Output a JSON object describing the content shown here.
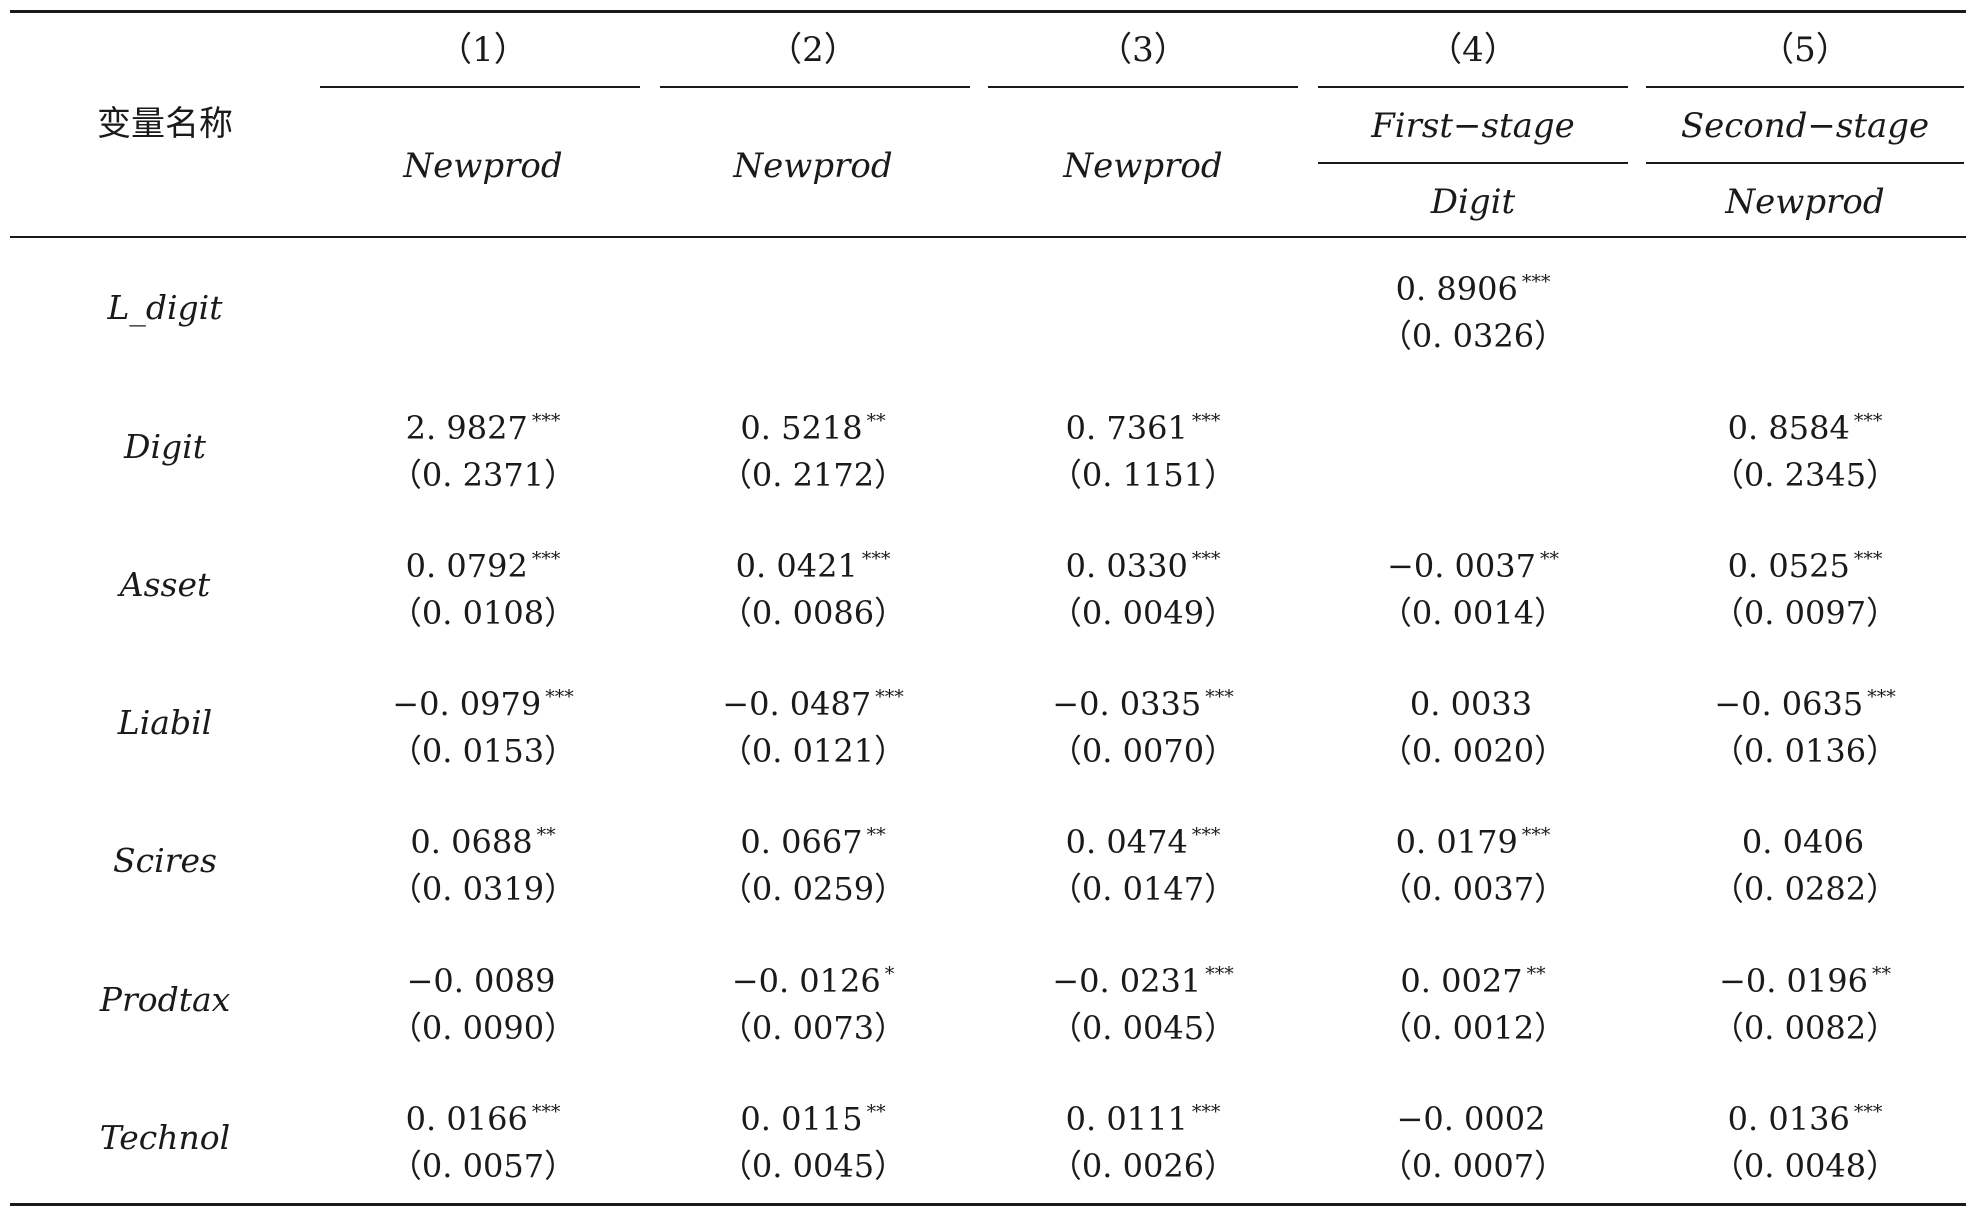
{
  "header": {
    "corner_label": "变量名称",
    "column_numbers": [
      "（1）",
      "（2）",
      "（3）",
      "（4）",
      "（5）"
    ],
    "stage_labels": [
      "First−stage",
      "Second−stage"
    ],
    "dependent_vars": [
      "Newprod",
      "Newprod",
      "Newprod",
      "Digit",
      "Newprod"
    ]
  },
  "rows": [
    {
      "var": "L_digit",
      "cells": [
        {
          "coef": "",
          "stars": "",
          "se": ""
        },
        {
          "coef": "",
          "stars": "",
          "se": ""
        },
        {
          "coef": "",
          "stars": "",
          "se": ""
        },
        {
          "coef": "0. 8906",
          "stars": "***",
          "se": "（0. 0326）"
        },
        {
          "coef": "",
          "stars": "",
          "se": ""
        }
      ]
    },
    {
      "var": "Digit",
      "cells": [
        {
          "coef": "2. 9827",
          "stars": "***",
          "se": "（0. 2371）"
        },
        {
          "coef": "0. 5218",
          "stars": "**",
          "se": "（0. 2172）"
        },
        {
          "coef": "0. 7361",
          "stars": "***",
          "se": "（0. 1151）"
        },
        {
          "coef": "",
          "stars": "",
          "se": ""
        },
        {
          "coef": "0. 8584",
          "stars": "***",
          "se": "（0. 2345）"
        }
      ]
    },
    {
      "var": "Asset",
      "cells": [
        {
          "coef": "0. 0792",
          "stars": "***",
          "se": "（0. 0108）"
        },
        {
          "coef": "0. 0421",
          "stars": "***",
          "se": "（0. 0086）"
        },
        {
          "coef": "0. 0330",
          "stars": "***",
          "se": "（0. 0049）"
        },
        {
          "coef": "−0. 0037",
          "stars": "**",
          "se": "（0. 0014）"
        },
        {
          "coef": "0. 0525",
          "stars": "***",
          "se": "（0. 0097）"
        }
      ]
    },
    {
      "var": "Liabil",
      "cells": [
        {
          "coef": "−0. 0979",
          "stars": "***",
          "se": "（0. 0153）"
        },
        {
          "coef": "−0. 0487",
          "stars": "***",
          "se": "（0. 0121）"
        },
        {
          "coef": "−0. 0335",
          "stars": "***",
          "se": "（0. 0070）"
        },
        {
          "coef": "0. 0033",
          "stars": "",
          "se": "（0. 0020）"
        },
        {
          "coef": "−0. 0635",
          "stars": "***",
          "se": "（0. 0136）"
        }
      ]
    },
    {
      "var": "Scires",
      "cells": [
        {
          "coef": "0. 0688",
          "stars": "**",
          "se": "（0. 0319）"
        },
        {
          "coef": "0. 0667",
          "stars": "**",
          "se": "（0. 0259）"
        },
        {
          "coef": "0. 0474",
          "stars": "***",
          "se": "（0. 0147）"
        },
        {
          "coef": "0. 0179",
          "stars": "***",
          "se": "（0. 0037）"
        },
        {
          "coef": "0. 0406",
          "stars": "",
          "se": "（0. 0282）"
        }
      ]
    },
    {
      "var": "Prodtax",
      "cells": [
        {
          "coef": "−0. 0089",
          "stars": "",
          "se": "（0. 0090）"
        },
        {
          "coef": "−0. 0126",
          "stars": "*",
          "se": "（0. 0073）"
        },
        {
          "coef": "−0. 0231",
          "stars": "***",
          "se": "（0. 0045）"
        },
        {
          "coef": "0. 0027",
          "stars": "**",
          "se": "（0. 0012）"
        },
        {
          "coef": "−0. 0196",
          "stars": "**",
          "se": "（0. 0082）"
        }
      ]
    },
    {
      "var": "Technol",
      "cells": [
        {
          "coef": "0. 0166",
          "stars": "***",
          "se": "（0. 0057）"
        },
        {
          "coef": "0. 0115",
          "stars": "**",
          "se": "（0. 0045）"
        },
        {
          "coef": "0. 0111",
          "stars": "***",
          "se": "（0. 0026）"
        },
        {
          "coef": "−0. 0002",
          "stars": "",
          "se": "（0. 0007）"
        },
        {
          "coef": "0. 0136",
          "stars": "***",
          "se": "（0. 0048）"
        }
      ]
    }
  ]
}
